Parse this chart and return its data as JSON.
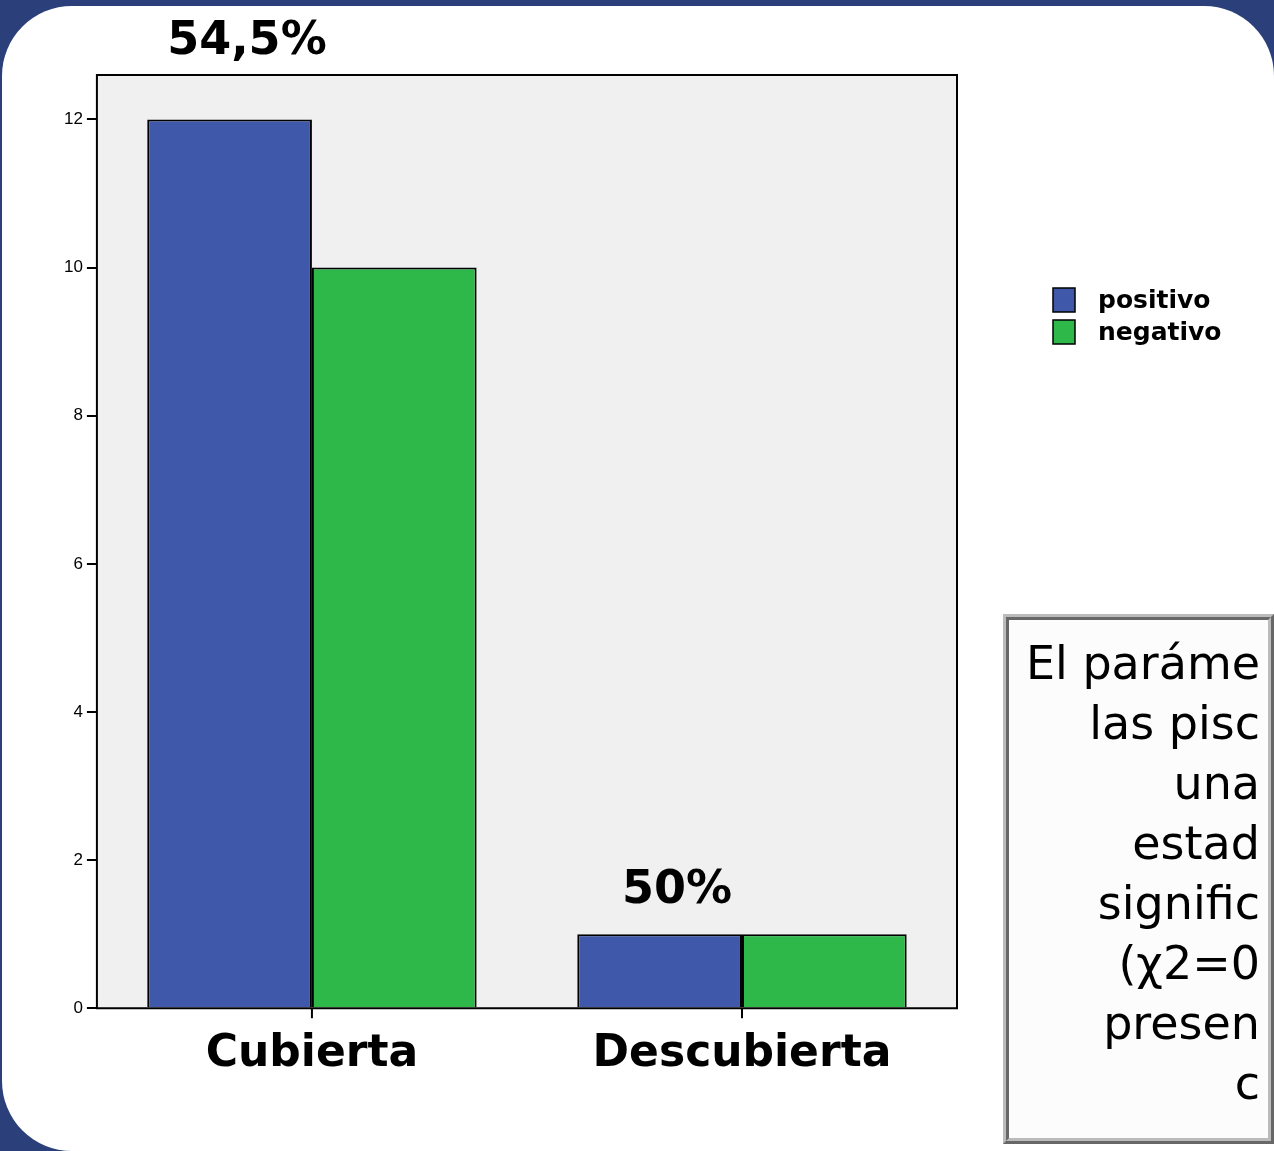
{
  "chart_data": {
    "type": "bar",
    "categories": [
      "Cubierta",
      "Descubierta"
    ],
    "series": [
      {
        "name": "positivo",
        "color": "#3f58aa",
        "values": [
          12,
          1
        ]
      },
      {
        "name": "negativo",
        "color": "#2fb84a",
        "values": [
          10,
          1
        ]
      }
    ],
    "ylim": [
      0,
      12.6
    ],
    "yticks": [
      0,
      2,
      4,
      6,
      8,
      10,
      12
    ],
    "grid": false,
    "legend": "right",
    "annotations": [
      "54,5%",
      "50%",
      "El paráme",
      "las pisc",
      "una",
      "estad",
      "signific",
      "(χ2=0",
      "presen",
      "c"
    ]
  }
}
